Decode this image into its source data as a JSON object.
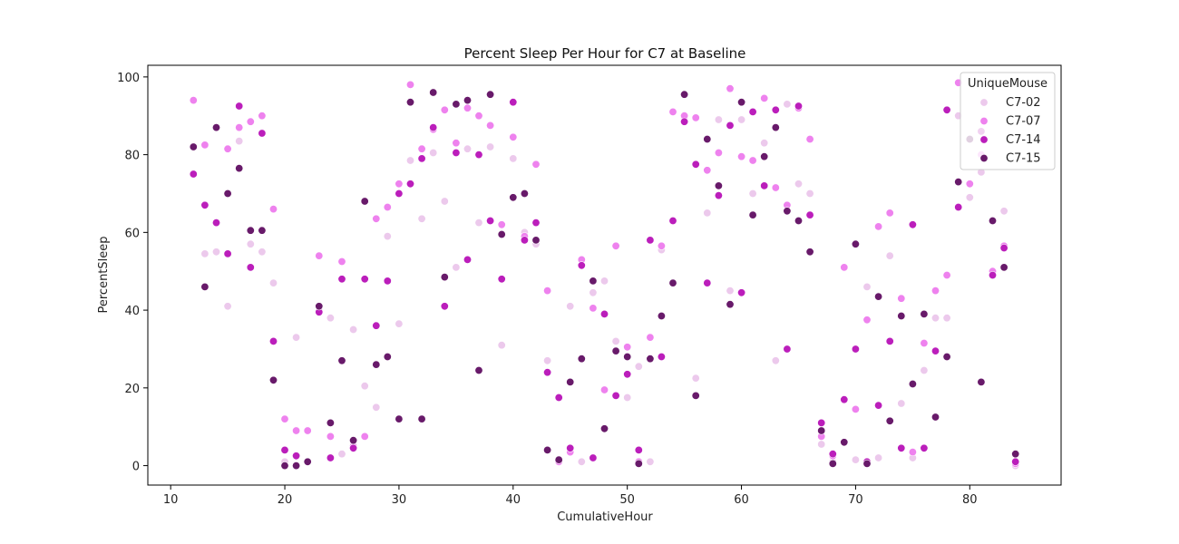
{
  "chart_data": {
    "type": "scatter",
    "title": "Percent Sleep Per Hour for C7 at Baseline",
    "xlabel": "CumulativeHour",
    "ylabel": "PercentSleep",
    "xlim": [
      8,
      88
    ],
    "ylim": [
      -5,
      103
    ],
    "xticks": [
      10,
      20,
      30,
      40,
      50,
      60,
      70,
      80
    ],
    "yticks": [
      0,
      20,
      40,
      60,
      80,
      100
    ],
    "grid": false,
    "legend": {
      "title": "UniqueMouse",
      "placement": "top-right"
    },
    "series": [
      {
        "name": "C7-02",
        "color": "#ecc9ec",
        "x": [
          12,
          13,
          14,
          15,
          16,
          17,
          18,
          19,
          20,
          21,
          22,
          23,
          24,
          25,
          26,
          27,
          28,
          29,
          30,
          31,
          32,
          33,
          34,
          35,
          36,
          37,
          38,
          39,
          40,
          41,
          42,
          43,
          44,
          45,
          46,
          47,
          48,
          49,
          50,
          51,
          52,
          53,
          54,
          55,
          56,
          57,
          58,
          59,
          60,
          61,
          62,
          63,
          64,
          65,
          66,
          67,
          68,
          69,
          70,
          71,
          72,
          73,
          74,
          75,
          76,
          77,
          78,
          79,
          80,
          81,
          82,
          83,
          84
        ],
        "y": [
          75,
          54.5,
          55,
          41,
          83.5,
          57,
          55,
          47,
          1,
          33,
          9,
          40,
          38,
          3,
          35,
          20.5,
          15,
          59,
          36.5,
          78.5,
          63.5,
          80.5,
          68,
          51,
          81.5,
          62.5,
          82,
          31,
          79,
          60,
          57,
          27,
          1,
          41,
          1,
          44.5,
          47.5,
          32,
          17.5,
          25.5,
          1,
          55.5,
          47,
          89.5,
          22.5,
          65,
          89,
          45,
          89,
          70,
          83,
          27,
          93,
          72.5,
          70,
          5.5,
          1,
          17,
          1.5,
          46,
          2,
          54,
          16,
          2,
          24.5,
          38,
          38,
          90,
          69,
          75.5,
          50,
          65.5,
          0
        ]
      },
      {
        "name": "C7-07",
        "color": "#ee82ee",
        "x": [
          12,
          13,
          14,
          15,
          16,
          17,
          18,
          19,
          20,
          21,
          22,
          23,
          24,
          25,
          26,
          27,
          28,
          29,
          30,
          31,
          32,
          33,
          34,
          35,
          36,
          37,
          38,
          39,
          40,
          41,
          42,
          43,
          44,
          45,
          46,
          47,
          48,
          49,
          50,
          51,
          52,
          53,
          54,
          55,
          56,
          57,
          58,
          59,
          60,
          61,
          62,
          63,
          64,
          65,
          66,
          67,
          68,
          69,
          70,
          71,
          72,
          73,
          74,
          75,
          76,
          77,
          78,
          79,
          80,
          81,
          82,
          83,
          84
        ],
        "y": [
          94,
          82.5,
          87,
          81.5,
          87,
          88.5,
          90,
          66,
          12,
          9,
          9,
          54,
          7.5,
          52.5,
          5,
          7.5,
          63.5,
          66.5,
          72.5,
          98,
          81.5,
          86.5,
          91.5,
          83,
          92,
          90,
          87.5,
          62,
          84.5,
          59,
          77.5,
          45,
          1,
          3.5,
          53,
          40.5,
          19.5,
          56.5,
          30.5,
          1,
          33,
          56.5,
          91,
          90,
          89.5,
          76,
          80.5,
          97,
          79.5,
          78.5,
          94.5,
          71.5,
          67,
          92,
          84,
          7.5,
          2.5,
          51,
          14.5,
          37.5,
          61.5,
          65,
          43,
          3.5,
          31.5,
          45,
          49,
          98.5,
          72.5,
          80,
          50,
          56.5,
          0.5
        ]
      },
      {
        "name": "C7-14",
        "color": "#bb1ebb",
        "x": [
          12,
          13,
          14,
          15,
          16,
          17,
          18,
          19,
          20,
          21,
          22,
          23,
          24,
          25,
          26,
          27,
          28,
          29,
          30,
          31,
          32,
          33,
          34,
          35,
          36,
          37,
          38,
          39,
          40,
          41,
          42,
          43,
          44,
          45,
          46,
          47,
          48,
          49,
          50,
          51,
          52,
          53,
          54,
          55,
          56,
          57,
          58,
          59,
          60,
          61,
          62,
          63,
          64,
          65,
          66,
          67,
          68,
          69,
          70,
          71,
          72,
          73,
          74,
          75,
          76,
          77,
          78,
          79,
          80,
          81,
          82,
          83,
          84
        ],
        "y": [
          75,
          67,
          62.5,
          54.5,
          92.5,
          51,
          85.5,
          32,
          4,
          2.5,
          1,
          39.5,
          2,
          48,
          4.5,
          48,
          36,
          47.5,
          70,
          72.5,
          79,
          87,
          41,
          80.5,
          53,
          80,
          63,
          48,
          93.5,
          58,
          62.5,
          24,
          17.5,
          4.5,
          51.5,
          2,
          39,
          18,
          23.5,
          4,
          58,
          28,
          63,
          88.5,
          77.5,
          47,
          69.5,
          87.5,
          44.5,
          91,
          72,
          91.5,
          30,
          92.5,
          64.5,
          11,
          3,
          17,
          30,
          1,
          15.5,
          32,
          4.5,
          62,
          4.5,
          29.5,
          91.5,
          66.5,
          84,
          86,
          49,
          56,
          1
        ]
      },
      {
        "name": "C7-15",
        "color": "#681a6a",
        "x": [
          12,
          13,
          14,
          15,
          16,
          17,
          18,
          19,
          20,
          21,
          22,
          23,
          24,
          25,
          26,
          27,
          28,
          29,
          30,
          31,
          32,
          33,
          34,
          35,
          36,
          37,
          38,
          39,
          40,
          41,
          42,
          43,
          44,
          45,
          46,
          47,
          48,
          49,
          50,
          51,
          52,
          53,
          54,
          55,
          56,
          57,
          58,
          59,
          60,
          61,
          62,
          63,
          64,
          65,
          66,
          67,
          68,
          69,
          70,
          71,
          72,
          73,
          74,
          75,
          76,
          77,
          78,
          79,
          80,
          81,
          82,
          83,
          84
        ],
        "y": [
          82,
          46,
          87,
          70,
          76.5,
          60.5,
          60.5,
          22,
          0,
          0,
          1,
          41,
          11,
          27,
          6.5,
          68,
          26,
          28,
          12,
          93.5,
          12,
          96,
          48.5,
          93,
          94,
          24.5,
          95.5,
          59.5,
          69,
          70,
          58,
          4,
          1.5,
          21.5,
          27.5,
          47.5,
          9.5,
          29.5,
          28,
          0.5,
          27.5,
          38.5,
          47,
          95.5,
          18,
          84,
          72,
          41.5,
          93.5,
          64.5,
          79.5,
          87,
          65.5,
          63,
          55,
          9,
          0.5,
          6,
          57,
          0.5,
          43.5,
          11.5,
          38.5,
          21,
          39,
          12.5,
          28,
          73,
          84,
          21.5,
          63,
          51,
          3
        ]
      }
    ]
  }
}
